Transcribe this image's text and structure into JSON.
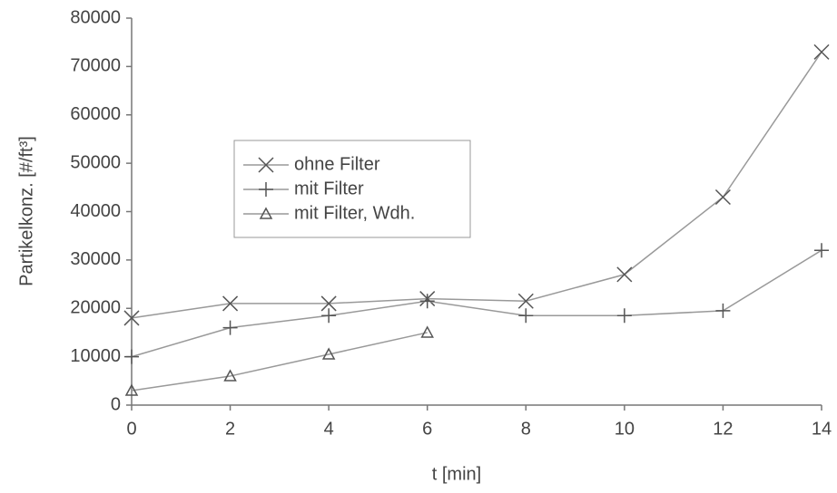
{
  "chart_data": {
    "type": "line",
    "x_label": "t [min]",
    "y_label": "Partikelkonz. [#/ft³]",
    "x": [
      0,
      2,
      4,
      6,
      8,
      10,
      12,
      14
    ],
    "series": [
      {
        "name": "ohne Filter",
        "color": "#999999",
        "marker": "x",
        "values": [
          18000,
          21000,
          21000,
          22000,
          21500,
          27000,
          43000,
          73000
        ]
      },
      {
        "name": "mit Filter",
        "color": "#999999",
        "marker": "plus",
        "values": [
          10000,
          16000,
          18500,
          21500,
          18500,
          18500,
          19500,
          32000
        ]
      },
      {
        "name": "mit Filter, Wdh.",
        "color": "#999999",
        "marker": "triangle",
        "values": [
          3000,
          6000,
          10500,
          15000,
          null,
          null,
          null,
          null
        ]
      }
    ],
    "xlim": [
      0,
      14
    ],
    "xticks": [
      0,
      2,
      4,
      6,
      8,
      10,
      12,
      14
    ],
    "ylim": [
      0,
      80000
    ],
    "yticks": [
      0,
      10000,
      20000,
      30000,
      40000,
      50000,
      60000,
      70000,
      80000
    ],
    "grid": false
  }
}
